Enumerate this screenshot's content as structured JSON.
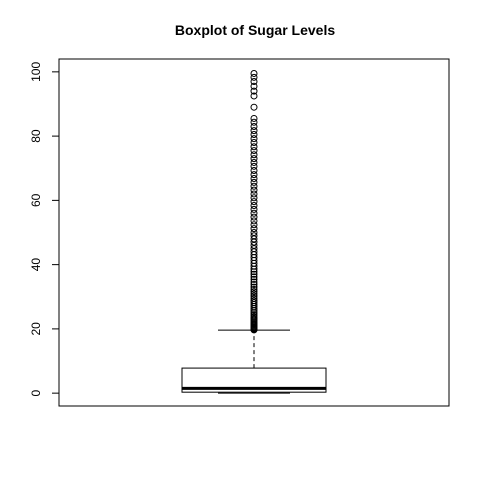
{
  "chart_data": {
    "type": "boxplot",
    "title": "Boxplot of Sugar Levels",
    "xlabel": "",
    "ylabel": "",
    "ylim": [
      -4,
      104
    ],
    "yticks": [
      0,
      20,
      40,
      60,
      80,
      100
    ],
    "yticklabels": [
      "0",
      "20",
      "40",
      "60",
      "80",
      "100"
    ],
    "grid": false,
    "box": {
      "min": 0,
      "q1": 0.3,
      "median": 1.5,
      "q3": 7.8,
      "whisker_low": 0,
      "whisker_high": 19.6
    },
    "outliers": [
      19.7,
      19.8,
      19.9,
      20.0,
      20.1,
      20.3,
      20.5,
      20.7,
      21.0,
      21.3,
      21.6,
      22.0,
      22.4,
      22.8,
      23.2,
      23.7,
      24.2,
      24.7,
      25.2,
      25.8,
      26.4,
      27.0,
      27.6,
      28.2,
      28.8,
      29.5,
      30.2,
      30.9,
      31.6,
      32.3,
      33.0,
      33.8,
      34.6,
      35.4,
      36.2,
      37.0,
      37.8,
      38.6,
      39.5,
      40.4,
      41.3,
      42.2,
      43.1,
      44.0,
      45.0,
      46.0,
      47.0,
      48.0,
      49.0,
      50.0,
      51.2,
      52.4,
      53.6,
      54.8,
      56.0,
      57.2,
      58.4,
      59.6,
      60.8,
      62.0,
      63.2,
      64.4,
      65.6,
      66.8,
      68.0,
      69.3,
      70.6,
      71.8,
      73.0,
      74.2,
      75.5,
      76.7,
      78.0,
      79.2,
      80.5,
      81.7,
      83.0,
      84.3,
      85.5,
      89.0,
      92.5,
      94.0,
      95.5,
      97.0,
      98.3,
      99.5
    ]
  }
}
